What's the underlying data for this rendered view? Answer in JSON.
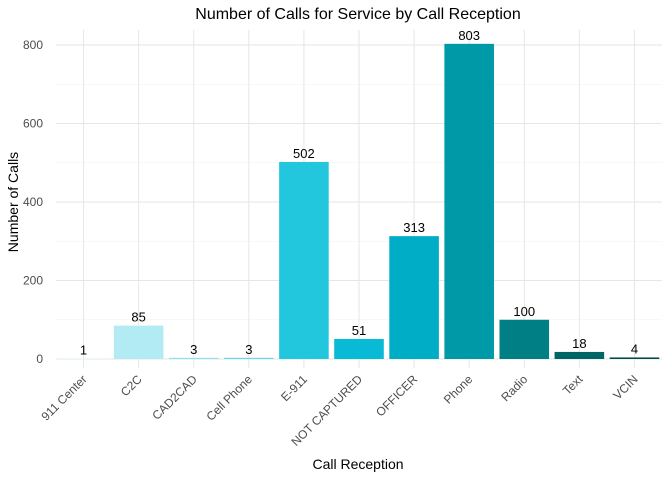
{
  "chart_data": {
    "type": "bar",
    "title": "Number of Calls for Service by Call Reception",
    "xlabel": "Call Reception",
    "ylabel": "Number of Calls",
    "categories": [
      "911 Center",
      "C2C",
      "CAD2CAD",
      "Cell Phone",
      "E-911",
      "NOT CAPTURED",
      "OFFICER",
      "Phone",
      "Radio",
      "Text",
      "VCIN"
    ],
    "values": [
      1,
      85,
      3,
      3,
      502,
      51,
      313,
      803,
      100,
      18,
      4
    ],
    "data_labels": [
      "1",
      "85",
      "3",
      "3",
      "502",
      "51",
      "313",
      "803",
      "100",
      "18",
      "4"
    ],
    "colors": [
      "#d9f3f8",
      "#b3ebf4",
      "#8ee2ef",
      "#69d9ea",
      "#23c7dd",
      "#08bad6",
      "#00adc6",
      "#0099a7",
      "#007f85",
      "#006565",
      "#004d4d"
    ],
    "ylim": [
      0,
      820
    ],
    "yticks": [
      0,
      200,
      400,
      600,
      800
    ],
    "ytick_labels": [
      "0",
      "200",
      "400",
      "600",
      "800"
    ],
    "grid": true,
    "legend": "none"
  }
}
